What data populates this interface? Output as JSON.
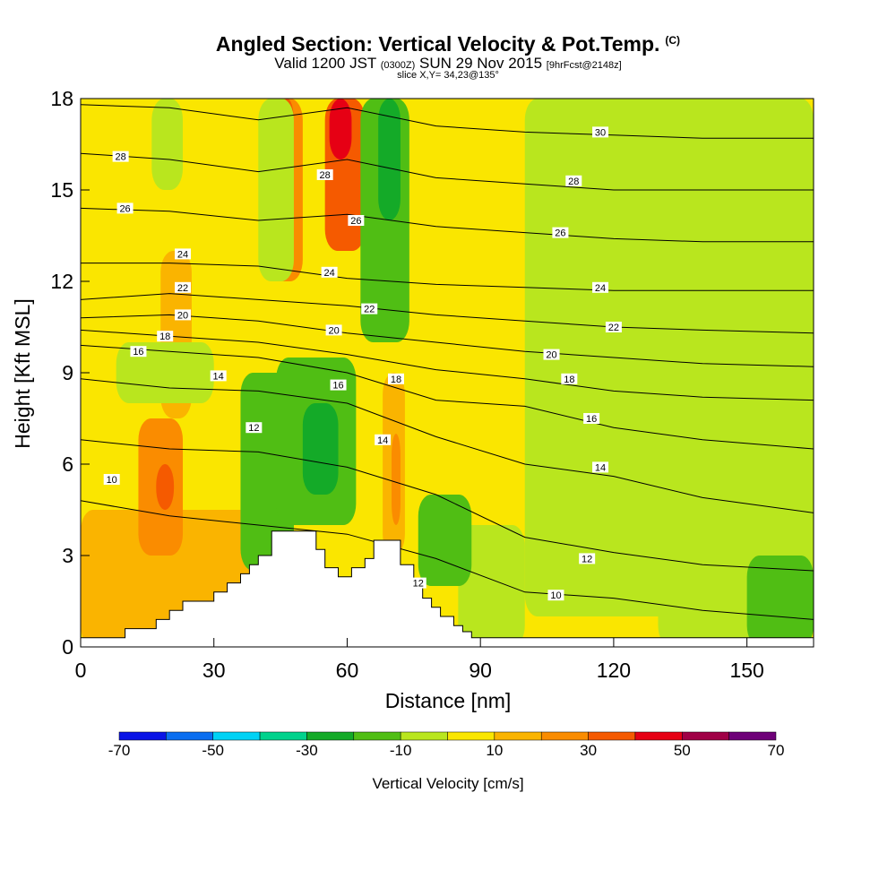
{
  "header": {
    "title": "Angled Section: Vertical Velocity & Pot.Temp.",
    "title_mark": "(C)",
    "valid_prefix": "Valid 1200 JST",
    "valid_zulu": "(0300Z)",
    "valid_date": "SUN 29 Nov 2015",
    "forecast": "[9hrFcst@2148z]",
    "slice": "slice X,Y= 34,23@135°"
  },
  "chart_data": {
    "type": "heatmap",
    "xlabel": "Distance [nm]",
    "ylabel": "Height [Kft MSL]",
    "xlim": [
      0,
      165
    ],
    "ylim": [
      0,
      18
    ],
    "x_ticks": [
      0,
      30,
      60,
      90,
      120,
      150
    ],
    "y_ticks": [
      0,
      3,
      6,
      9,
      12,
      15,
      18
    ],
    "colorbar": {
      "label": "Vertical Velocity [cm/s]",
      "tick_labels": [
        "-70",
        "-50",
        "-30",
        "-10",
        "10",
        "30",
        "50",
        "70"
      ],
      "bins": [
        -70,
        -60,
        -50,
        -40,
        -30,
        -20,
        -10,
        0,
        10,
        20,
        30,
        40,
        50,
        60,
        70
      ],
      "colors": [
        "#0a14e6",
        "#0a6ef0",
        "#00d2f5",
        "#00d28c",
        "#14aa28",
        "#50be14",
        "#b9e61e",
        "#fae600",
        "#fab400",
        "#fa8c00",
        "#f55a00",
        "#e60014",
        "#a00046",
        "#6e0078"
      ]
    },
    "background_color": "#fae600",
    "velocity_cells": [
      {
        "x": [
          0,
          40
        ],
        "y": [
          0,
          4.5
        ],
        "value": 15
      },
      {
        "x": [
          13,
          23
        ],
        "y": [
          3,
          7.5
        ],
        "value": 25
      },
      {
        "x": [
          17,
          21
        ],
        "y": [
          4.5,
          6
        ],
        "value": 35
      },
      {
        "x": [
          18,
          25
        ],
        "y": [
          7.5,
          13
        ],
        "value": 12
      },
      {
        "x": [
          43,
          50
        ],
        "y": [
          12,
          18
        ],
        "value": 25
      },
      {
        "x": [
          45,
          48
        ],
        "y": [
          15,
          18
        ],
        "value": 35
      },
      {
        "x": [
          55,
          64
        ],
        "y": [
          13,
          18
        ],
        "value": 35
      },
      {
        "x": [
          56,
          61
        ],
        "y": [
          16,
          18
        ],
        "value": 45
      },
      {
        "x": [
          68,
          73
        ],
        "y": [
          3,
          9
        ],
        "value": 15
      },
      {
        "x": [
          70,
          72
        ],
        "y": [
          4,
          7
        ],
        "value": 25
      },
      {
        "x": [
          36,
          48
        ],
        "y": [
          2.5,
          9
        ],
        "value": -15
      },
      {
        "x": [
          44,
          62
        ],
        "y": [
          4,
          9.5
        ],
        "value": -15
      },
      {
        "x": [
          50,
          58
        ],
        "y": [
          5,
          8
        ],
        "value": -25
      },
      {
        "x": [
          63,
          74
        ],
        "y": [
          10,
          18
        ],
        "value": -15
      },
      {
        "x": [
          67,
          72
        ],
        "y": [
          14,
          18
        ],
        "value": -25
      },
      {
        "x": [
          40,
          48
        ],
        "y": [
          12,
          18
        ],
        "value": -5
      },
      {
        "x": [
          8,
          30
        ],
        "y": [
          8,
          10
        ],
        "value": -5
      },
      {
        "x": [
          16,
          23
        ],
        "y": [
          15,
          18
        ],
        "value": -5
      },
      {
        "x": [
          100,
          165
        ],
        "y": [
          1,
          18
        ],
        "value": -5
      },
      {
        "x": [
          85,
          100
        ],
        "y": [
          0,
          4
        ],
        "value": -5
      },
      {
        "x": [
          130,
          165
        ],
        "y": [
          0,
          9
        ],
        "value": -5
      },
      {
        "x": [
          150,
          165
        ],
        "y": [
          0,
          3
        ],
        "value": -15
      },
      {
        "x": [
          76,
          88
        ],
        "y": [
          2,
          5
        ],
        "value": -15
      }
    ],
    "terrain_profile": {
      "x": [
        0,
        10,
        10,
        17,
        17,
        20,
        20,
        23,
        23,
        30,
        30,
        33,
        33,
        36,
        36,
        38,
        38,
        40,
        40,
        43,
        43,
        53,
        53,
        55,
        55,
        58,
        58,
        61,
        61,
        64,
        64,
        66,
        66,
        72,
        72,
        75,
        75,
        77,
        77,
        79,
        79,
        81,
        81,
        84,
        84,
        86,
        86,
        88,
        88,
        90,
        90,
        165
      ],
      "y": [
        0.3,
        0.3,
        0.6,
        0.6,
        0.9,
        0.9,
        1.2,
        1.2,
        1.5,
        1.5,
        1.8,
        1.8,
        2.1,
        2.1,
        2.4,
        2.4,
        2.7,
        2.7,
        3,
        3,
        3.8,
        3.8,
        3.2,
        3.2,
        2.6,
        2.6,
        2.3,
        2.3,
        2.6,
        2.6,
        2.9,
        2.9,
        3.5,
        3.5,
        2.7,
        2.7,
        2.0,
        2.0,
        1.6,
        1.6,
        1.3,
        1.3,
        1.0,
        1.0,
        0.7,
        0.7,
        0.5,
        0.5,
        0.3,
        0.3,
        0.3,
        0.3
      ]
    },
    "isentropes": [
      {
        "label": "10",
        "points": [
          [
            0,
            4.8
          ],
          [
            20,
            4.3
          ],
          [
            40,
            4.0
          ],
          [
            60,
            3.7
          ],
          [
            80,
            2.9
          ],
          [
            100,
            1.8
          ],
          [
            120,
            1.6
          ],
          [
            140,
            1.2
          ],
          [
            165,
            0.9
          ]
        ],
        "label_at": [
          [
            7,
            5.5
          ],
          [
            107,
            1.7
          ]
        ]
      },
      {
        "label": "12",
        "points": [
          [
            0,
            6.8
          ],
          [
            20,
            6.5
          ],
          [
            40,
            6.4
          ],
          [
            60,
            5.9
          ],
          [
            80,
            5.0
          ],
          [
            100,
            3.6
          ],
          [
            120,
            3.1
          ],
          [
            140,
            2.7
          ],
          [
            165,
            2.5
          ]
        ],
        "label_at": [
          [
            39,
            7.2
          ],
          [
            114,
            2.9
          ],
          [
            76,
            2.1
          ]
        ]
      },
      {
        "label": "14",
        "points": [
          [
            0,
            8.8
          ],
          [
            20,
            8.5
          ],
          [
            40,
            8.4
          ],
          [
            60,
            8.0
          ],
          [
            80,
            6.9
          ],
          [
            100,
            6.0
          ],
          [
            120,
            5.6
          ],
          [
            140,
            4.9
          ],
          [
            165,
            4.4
          ]
        ],
        "label_at": [
          [
            31,
            8.9
          ],
          [
            68,
            6.8
          ],
          [
            117,
            5.9
          ]
        ]
      },
      {
        "label": "16",
        "points": [
          [
            0,
            9.9
          ],
          [
            20,
            9.7
          ],
          [
            40,
            9.5
          ],
          [
            60,
            9.0
          ],
          [
            80,
            8.1
          ],
          [
            100,
            7.9
          ],
          [
            120,
            7.2
          ],
          [
            140,
            6.8
          ],
          [
            165,
            6.5
          ]
        ],
        "label_at": [
          [
            13,
            9.7
          ],
          [
            58,
            8.6
          ],
          [
            115,
            7.5
          ]
        ]
      },
      {
        "label": "18",
        "points": [
          [
            0,
            10.4
          ],
          [
            20,
            10.2
          ],
          [
            40,
            10.0
          ],
          [
            60,
            9.6
          ],
          [
            80,
            9.1
          ],
          [
            100,
            8.8
          ],
          [
            120,
            8.4
          ],
          [
            140,
            8.2
          ],
          [
            165,
            8.1
          ]
        ],
        "label_at": [
          [
            19,
            10.2
          ],
          [
            71,
            8.8
          ],
          [
            110,
            8.8
          ]
        ]
      },
      {
        "label": "20",
        "points": [
          [
            0,
            10.8
          ],
          [
            20,
            10.9
          ],
          [
            40,
            10.7
          ],
          [
            60,
            10.3
          ],
          [
            80,
            10.0
          ],
          [
            100,
            9.7
          ],
          [
            120,
            9.5
          ],
          [
            140,
            9.3
          ],
          [
            165,
            9.2
          ]
        ],
        "label_at": [
          [
            23,
            10.9
          ],
          [
            57,
            10.4
          ],
          [
            106,
            9.6
          ]
        ]
      },
      {
        "label": "22",
        "points": [
          [
            0,
            11.4
          ],
          [
            20,
            11.6
          ],
          [
            40,
            11.4
          ],
          [
            60,
            11.2
          ],
          [
            80,
            10.9
          ],
          [
            100,
            10.7
          ],
          [
            120,
            10.5
          ],
          [
            140,
            10.4
          ],
          [
            165,
            10.3
          ]
        ],
        "label_at": [
          [
            23,
            11.8
          ],
          [
            65,
            11.1
          ],
          [
            120,
            10.5
          ]
        ]
      },
      {
        "label": "24",
        "points": [
          [
            0,
            12.6
          ],
          [
            20,
            12.6
          ],
          [
            40,
            12.5
          ],
          [
            60,
            12.1
          ],
          [
            80,
            11.9
          ],
          [
            100,
            11.8
          ],
          [
            120,
            11.7
          ],
          [
            140,
            11.7
          ],
          [
            165,
            11.7
          ]
        ],
        "label_at": [
          [
            23,
            12.9
          ],
          [
            56,
            12.3
          ],
          [
            117,
            11.8
          ]
        ]
      },
      {
        "label": "26",
        "points": [
          [
            0,
            14.4
          ],
          [
            20,
            14.3
          ],
          [
            40,
            14.0
          ],
          [
            60,
            14.2
          ],
          [
            80,
            13.8
          ],
          [
            100,
            13.6
          ],
          [
            120,
            13.4
          ],
          [
            140,
            13.3
          ],
          [
            165,
            13.3
          ]
        ],
        "label_at": [
          [
            10,
            14.4
          ],
          [
            62,
            14.0
          ],
          [
            108,
            13.6
          ]
        ]
      },
      {
        "label": "28",
        "points": [
          [
            0,
            16.2
          ],
          [
            20,
            16.0
          ],
          [
            40,
            15.6
          ],
          [
            60,
            16.0
          ],
          [
            80,
            15.4
          ],
          [
            100,
            15.2
          ],
          [
            120,
            15.0
          ],
          [
            140,
            15.0
          ],
          [
            165,
            15.0
          ]
        ],
        "label_at": [
          [
            9,
            16.1
          ],
          [
            55,
            15.5
          ],
          [
            111,
            15.3
          ]
        ]
      },
      {
        "label": "30",
        "points": [
          [
            0,
            17.8
          ],
          [
            20,
            17.7
          ],
          [
            40,
            17.3
          ],
          [
            60,
            17.7
          ],
          [
            80,
            17.1
          ],
          [
            100,
            16.9
          ],
          [
            120,
            16.8
          ],
          [
            140,
            16.7
          ],
          [
            165,
            16.7
          ]
        ],
        "label_at": [
          [
            117,
            16.9
          ]
        ]
      }
    ]
  }
}
